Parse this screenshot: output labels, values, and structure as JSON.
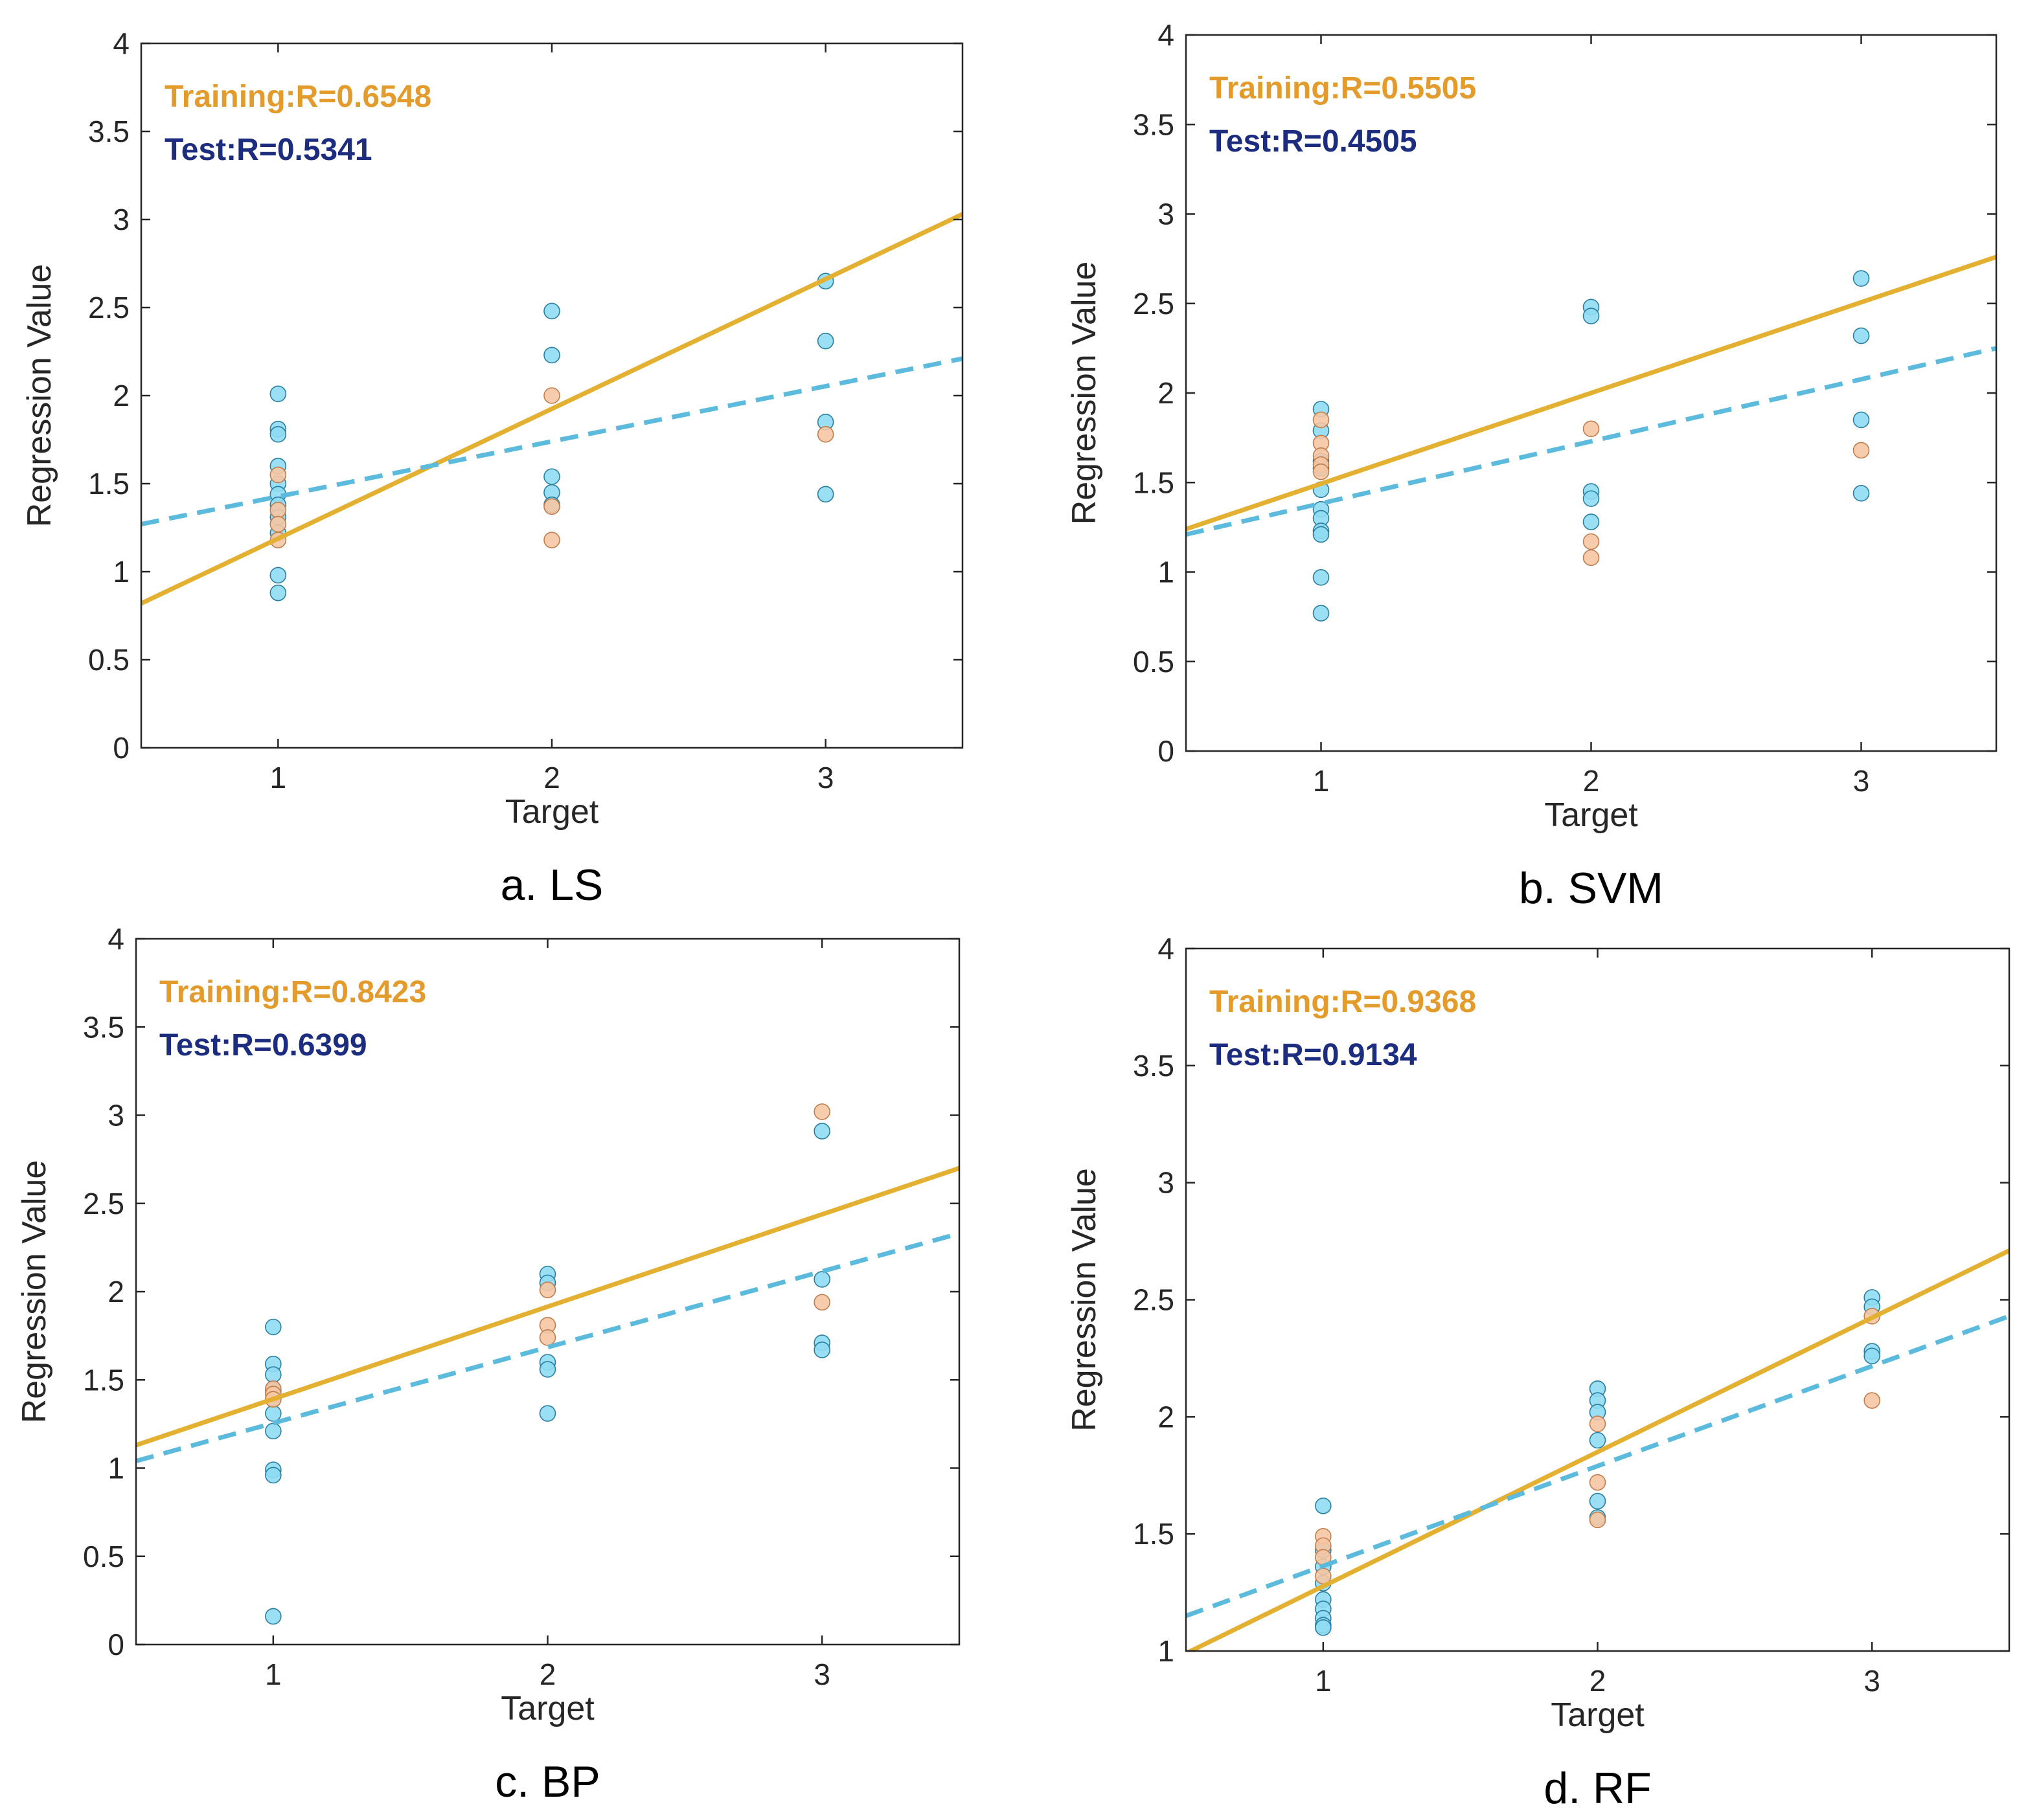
{
  "colors": {
    "train_line": "#e3b031",
    "test_line": "#5cbadd",
    "train_text": "#e39b2c",
    "test_text": "#1c2d80",
    "train_marker_fill": "#f6c7a4",
    "train_marker_edge": "#c07e4e",
    "test_marker_fill": "#8fdcf3",
    "test_marker_edge": "#2a7fa0",
    "axis": "#262626"
  },
  "chart_data": [
    {
      "id": "ls",
      "type": "scatter",
      "caption": "a. LS",
      "xlabel": "Target",
      "ylabel": "Regression Value",
      "xlim": [
        0.5,
        3.5
      ],
      "ylim": [
        0,
        4
      ],
      "xticks": [
        1,
        2,
        3
      ],
      "yticks": [
        0,
        0.5,
        1,
        1.5,
        2,
        2.5,
        3,
        3.5,
        4
      ],
      "annotations": [
        {
          "series": "train",
          "text": "Training:R=0.6548"
        },
        {
          "series": "test",
          "text": "Test:R=0.5341"
        }
      ],
      "fit_lines": {
        "train": {
          "style": "solid",
          "x": [
            0.5,
            3.5
          ],
          "y": [
            0.82,
            3.03
          ]
        },
        "test": {
          "style": "dashed",
          "x": [
            0.5,
            3.5
          ],
          "y": [
            1.27,
            2.21
          ]
        }
      },
      "series": [
        {
          "name": "train",
          "x": [
            1,
            1,
            1,
            1,
            2,
            2,
            2,
            3
          ],
          "y": [
            1.55,
            1.35,
            1.27,
            1.18,
            2.0,
            1.37,
            1.18,
            1.78
          ]
        },
        {
          "name": "test",
          "x": [
            1,
            1,
            1,
            1,
            1,
            1,
            1,
            1,
            1,
            1,
            1,
            2,
            2,
            2,
            2,
            2,
            3,
            3,
            3,
            3
          ],
          "y": [
            2.01,
            1.81,
            1.78,
            1.6,
            1.5,
            1.44,
            1.38,
            1.31,
            1.22,
            0.98,
            0.88,
            2.48,
            2.23,
            1.54,
            1.45,
            1.38,
            2.65,
            2.31,
            1.85,
            1.44
          ]
        }
      ]
    },
    {
      "id": "svm",
      "type": "scatter",
      "caption": "b. SVM",
      "xlabel": "Target",
      "ylabel": "Regression Value",
      "xlim": [
        0.5,
        3.5
      ],
      "ylim": [
        0,
        4
      ],
      "xticks": [
        1,
        2,
        3
      ],
      "yticks": [
        0,
        0.5,
        1,
        1.5,
        2,
        2.5,
        3,
        3.5,
        4
      ],
      "annotations": [
        {
          "series": "train",
          "text": "Training:R=0.5505"
        },
        {
          "series": "test",
          "text": "Test:R=0.4505"
        }
      ],
      "fit_lines": {
        "train": {
          "style": "solid",
          "x": [
            0.5,
            3.5
          ],
          "y": [
            1.24,
            2.76
          ]
        },
        "test": {
          "style": "dashed",
          "x": [
            0.5,
            3.5
          ],
          "y": [
            1.21,
            2.25
          ]
        }
      },
      "series": [
        {
          "name": "train",
          "x": [
            1,
            1,
            1,
            1,
            1,
            2,
            2,
            2,
            3
          ],
          "y": [
            1.85,
            1.72,
            1.65,
            1.6,
            1.56,
            1.8,
            1.17,
            1.08,
            1.68
          ]
        },
        {
          "name": "test",
          "x": [
            1,
            1,
            1,
            1,
            1,
            1,
            1,
            1,
            1,
            1,
            1,
            2,
            2,
            2,
            2,
            2,
            3,
            3,
            3,
            3
          ],
          "y": [
            1.91,
            1.79,
            1.62,
            1.58,
            1.46,
            1.35,
            1.3,
            1.23,
            1.21,
            0.97,
            0.77,
            2.48,
            2.43,
            1.45,
            1.41,
            1.28,
            2.64,
            2.32,
            1.85,
            1.44
          ]
        }
      ]
    },
    {
      "id": "bp",
      "type": "scatter",
      "caption": "c. BP",
      "xlabel": "Target",
      "ylabel": "Regression Value",
      "xlim": [
        0.5,
        3.5
      ],
      "ylim": [
        0,
        4
      ],
      "xticks": [
        1,
        2,
        3
      ],
      "yticks": [
        0,
        0.5,
        1,
        1.5,
        2,
        2.5,
        3,
        3.5,
        4
      ],
      "annotations": [
        {
          "series": "train",
          "text": "Training:R=0.8423"
        },
        {
          "series": "test",
          "text": "Test:R=0.6399"
        }
      ],
      "fit_lines": {
        "train": {
          "style": "solid",
          "x": [
            0.5,
            3.5
          ],
          "y": [
            1.13,
            2.7
          ]
        },
        "test": {
          "style": "dashed",
          "x": [
            0.5,
            3.5
          ],
          "y": [
            1.04,
            2.33
          ]
        }
      },
      "series": [
        {
          "name": "train",
          "x": [
            1,
            1,
            1,
            2,
            2,
            2,
            3,
            3
          ],
          "y": [
            1.45,
            1.42,
            1.39,
            2.01,
            1.81,
            1.74,
            3.02,
            1.94
          ]
        },
        {
          "name": "test",
          "x": [
            1,
            1,
            1,
            1,
            1,
            1,
            1,
            1,
            1,
            1,
            2,
            2,
            2,
            2,
            2,
            3,
            3,
            3,
            3
          ],
          "y": [
            1.8,
            1.59,
            1.53,
            1.44,
            1.39,
            1.31,
            1.21,
            0.99,
            0.96,
            0.16,
            2.1,
            2.05,
            1.6,
            1.56,
            1.31,
            2.91,
            2.07,
            1.71,
            1.67
          ]
        }
      ]
    },
    {
      "id": "rf",
      "type": "scatter",
      "caption": "d. RF",
      "xlabel": "Target",
      "ylabel": "Regression Value",
      "xlim": [
        0.5,
        3.5
      ],
      "ylim": [
        1,
        4
      ],
      "xticks": [
        1,
        2,
        3
      ],
      "yticks": [
        1,
        1.5,
        2,
        2.5,
        3,
        3.5,
        4
      ],
      "annotations": [
        {
          "series": "train",
          "text": "Training:R=0.9368"
        },
        {
          "series": "test",
          "text": "Test:R=0.9134"
        }
      ],
      "fit_lines": {
        "train": {
          "style": "solid",
          "x": [
            0.5,
            3.5
          ],
          "y": [
            0.99,
            2.71
          ]
        },
        "test": {
          "style": "dashed",
          "x": [
            0.5,
            3.5
          ],
          "y": [
            1.15,
            2.43
          ]
        }
      },
      "series": [
        {
          "name": "train",
          "x": [
            1,
            1,
            1,
            1,
            2,
            2,
            2,
            3,
            3
          ],
          "y": [
            1.49,
            1.45,
            1.4,
            1.32,
            1.97,
            1.72,
            1.56,
            2.43,
            2.07
          ]
        },
        {
          "name": "test",
          "x": [
            1,
            1,
            1,
            1,
            1,
            1,
            1,
            1,
            1,
            2,
            2,
            2,
            2,
            2,
            2,
            3,
            3,
            3,
            3
          ],
          "y": [
            1.62,
            1.43,
            1.36,
            1.29,
            1.22,
            1.18,
            1.14,
            1.11,
            1.1,
            2.12,
            2.07,
            2.02,
            1.9,
            1.64,
            1.57,
            2.51,
            2.47,
            2.28,
            2.26
          ]
        }
      ]
    }
  ]
}
